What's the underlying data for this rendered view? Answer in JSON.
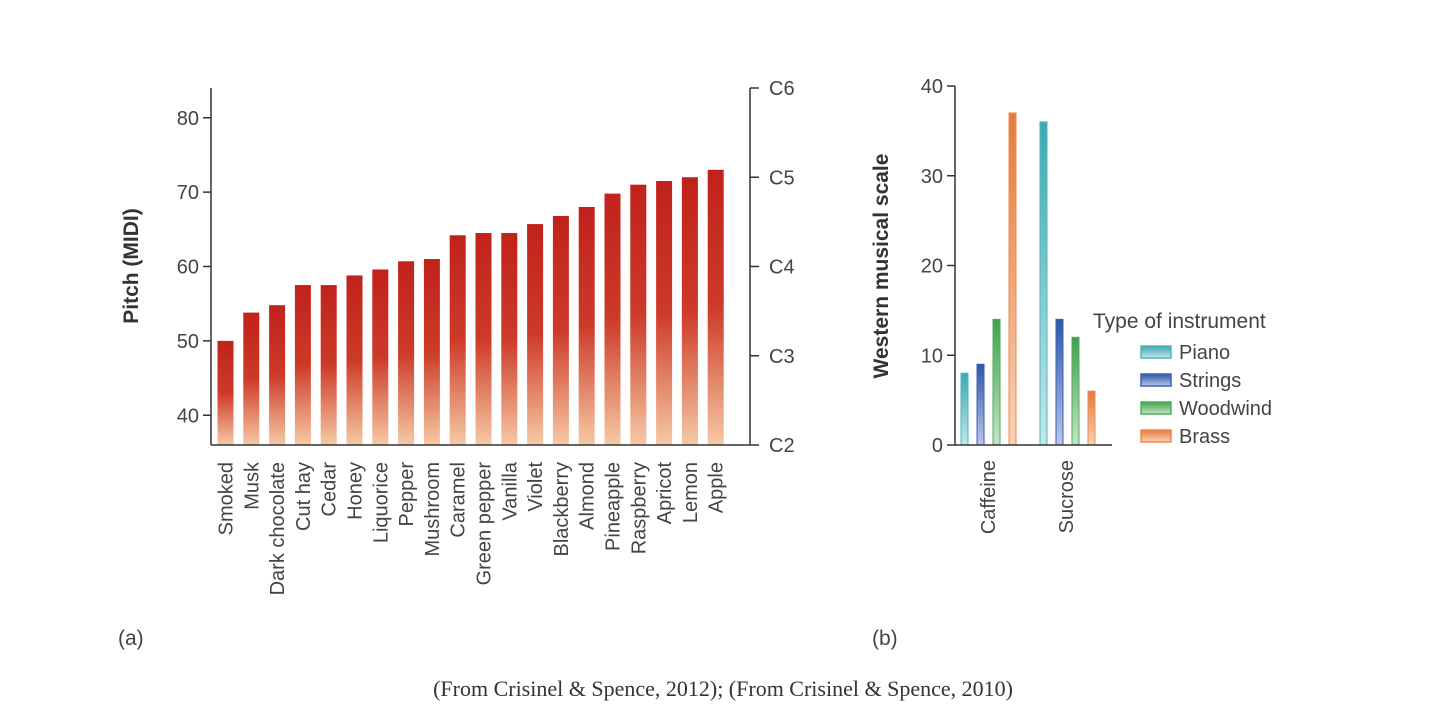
{
  "caption": "(From Crisinel & Spence, 2012); (From Crisinel & Spence, 2010)",
  "colors": {
    "bar_top": "#c0221b",
    "bar_bottom": "#f6c9a4",
    "piano": "#4fb6bd",
    "strings": "#3a62b3",
    "woodwind": "#4fae5c",
    "brass": "#ec8a4e",
    "axis": "#333333"
  },
  "chart_data": [
    {
      "panel_label": "(a)",
      "type": "bar",
      "ylabel": "Pitch (MIDI)",
      "ylim": [
        36,
        84
      ],
      "yticks": [
        40,
        50,
        60,
        70,
        80
      ],
      "secondary_axis": {
        "ticks": [
          {
            "label": "C2",
            "value": 36
          },
          {
            "label": "C3",
            "value": 48
          },
          {
            "label": "C4",
            "value": 60
          },
          {
            "label": "C5",
            "value": 72
          },
          {
            "label": "C6",
            "value": 84
          }
        ]
      },
      "categories": [
        "Smoked",
        "Musk",
        "Dark chocolate",
        "Cut hay",
        "Cedar",
        "Honey",
        "Liquorice",
        "Pepper",
        "Mushroom",
        "Caramel",
        "Green pepper",
        "Vanilla",
        "Violet",
        "Blackberry",
        "Almond",
        "Pineapple",
        "Raspberry",
        "Apricot",
        "Lemon",
        "Apple"
      ],
      "values": [
        50,
        53.8,
        54.8,
        57.5,
        57.5,
        58.8,
        59.6,
        60.7,
        61,
        64.2,
        64.5,
        64.5,
        65.7,
        66.8,
        68,
        69.8,
        71,
        71.5,
        72,
        73
      ],
      "grid": false
    },
    {
      "panel_label": "(b)",
      "type": "bar",
      "ylabel": "Western musical scale",
      "ylim": [
        0,
        40
      ],
      "yticks": [
        0,
        10,
        20,
        30,
        40
      ],
      "categories": [
        "Caffeine",
        "Sucrose"
      ],
      "legend_title": "Type of instrument",
      "legend_position": "right",
      "series": [
        {
          "name": "Piano",
          "values": [
            8,
            36
          ]
        },
        {
          "name": "Strings",
          "values": [
            9,
            14
          ]
        },
        {
          "name": "Woodwind",
          "values": [
            14,
            12
          ]
        },
        {
          "name": "Brass",
          "values": [
            37,
            6
          ]
        }
      ],
      "grid": false
    }
  ]
}
